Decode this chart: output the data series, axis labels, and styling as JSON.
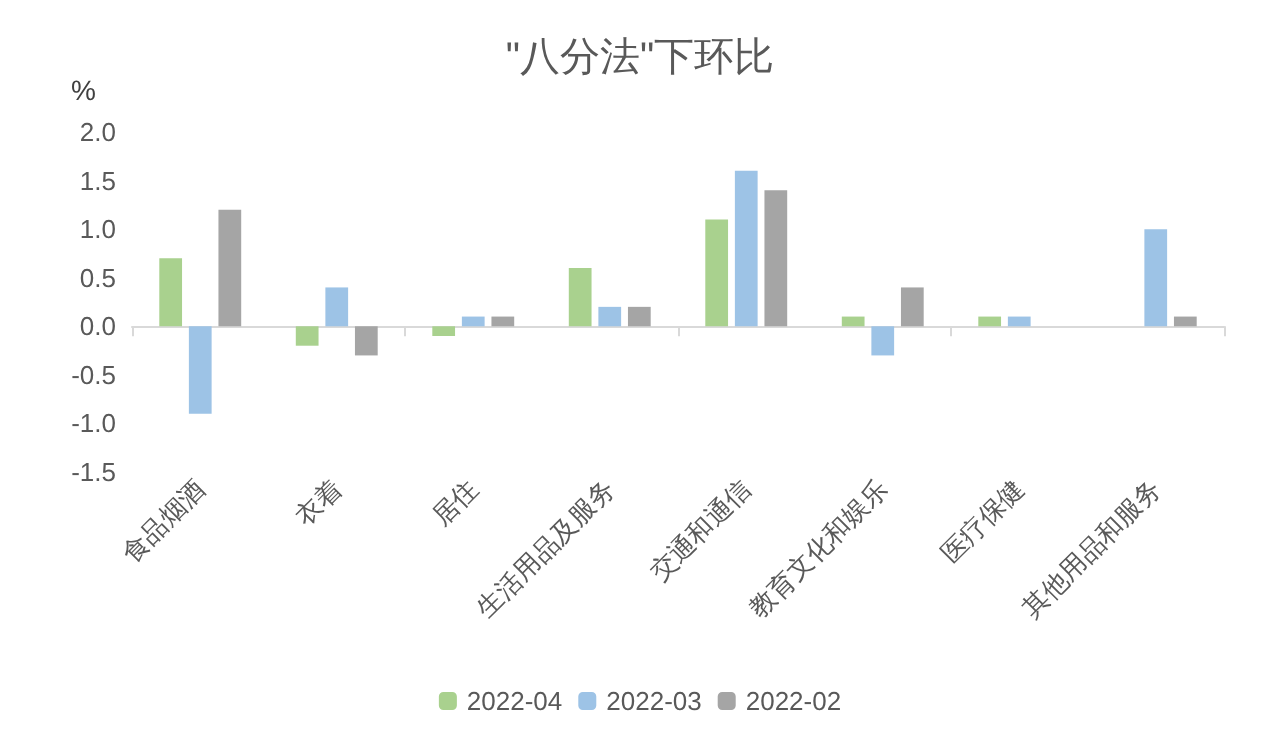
{
  "chart_data": {
    "type": "bar",
    "title": "\"八分法\"下环比",
    "ylabel": "%",
    "categories": [
      "食品烟酒",
      "衣着",
      "居住",
      "生活用品及服务",
      "交通和通信",
      "教育文化和娱乐",
      "医疗保健",
      "其他用品和服务"
    ],
    "series": [
      {
        "name": "2022-04",
        "color": "#a9d18e",
        "values": [
          0.7,
          -0.2,
          -0.1,
          0.6,
          1.1,
          0.1,
          0.1,
          0.0
        ]
      },
      {
        "name": "2022-03",
        "color": "#9dc3e6",
        "values": [
          -0.9,
          0.4,
          0.1,
          0.2,
          1.6,
          -0.3,
          0.1,
          1.0
        ]
      },
      {
        "name": "2022-02",
        "color": "#a5a5a5",
        "values": [
          1.2,
          -0.3,
          0.1,
          0.2,
          1.4,
          0.4,
          0.0,
          0.1
        ]
      }
    ],
    "ylim": [
      -1.5,
      2.0
    ],
    "yticks": [
      {
        "value": -1.5,
        "label": "-1.5"
      },
      {
        "value": -1,
        "label": "-1.0"
      },
      {
        "value": -0.5,
        "label": "-0.5"
      },
      {
        "value": 0,
        "label": "0.0"
      },
      {
        "value": 0.5,
        "label": "0.5"
      },
      {
        "value": 1,
        "label": "1.0"
      },
      {
        "value": 1.5,
        "label": "1.5"
      },
      {
        "value": 2,
        "label": "2.0"
      }
    ],
    "legend": "bottom"
  }
}
